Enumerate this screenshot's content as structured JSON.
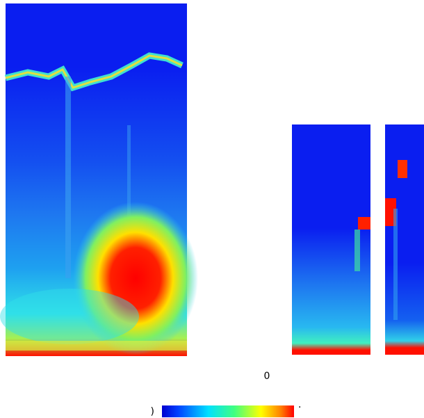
{
  "labels": {
    "center": "0",
    "colorbar_left": ")",
    "colorbar_right": "."
  }
}
